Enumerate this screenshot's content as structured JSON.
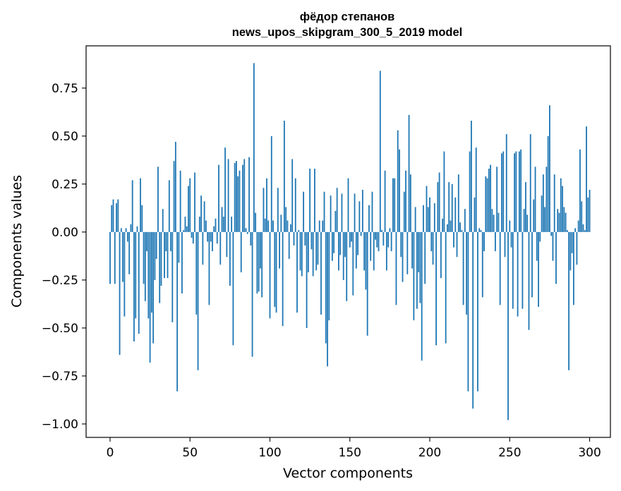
{
  "chart_data": {
    "type": "bar",
    "title_line1": "фёдор степанов",
    "title_line2": "news_upos_skipgram_300_5_2019 model",
    "xlabel": "Vector components",
    "ylabel": "Components values",
    "xlim": [
      -15,
      313
    ],
    "ylim": [
      -1.07,
      0.97
    ],
    "xticks": [
      0,
      50,
      100,
      150,
      200,
      250,
      300
    ],
    "xtick_labels": [
      "0",
      "50",
      "100",
      "150",
      "200",
      "250",
      "300"
    ],
    "yticks": [
      -1.0,
      -0.75,
      -0.5,
      -0.25,
      0.0,
      0.25,
      0.5,
      0.75
    ],
    "ytick_labels": [
      "−1.00",
      "−0.75",
      "−0.50",
      "−0.25",
      "0.00",
      "0.25",
      "0.50",
      "0.75"
    ],
    "bar_color": "#1f77b4",
    "values": [
      -0.27,
      0.14,
      0.17,
      -0.27,
      0.15,
      0.17,
      -0.64,
      0.02,
      -0.26,
      -0.44,
      0.02,
      -0.05,
      -0.22,
      0.04,
      0.27,
      -0.57,
      -0.45,
      0.03,
      -0.53,
      0.28,
      0.14,
      -0.27,
      -0.36,
      -0.1,
      -0.45,
      -0.68,
      -0.42,
      -0.58,
      -0.25,
      -0.14,
      0.34,
      -0.37,
      -0.28,
      0.12,
      -0.24,
      -0.1,
      -0.24,
      0.27,
      -0.1,
      -0.47,
      0.37,
      0.47,
      -0.83,
      -0.16,
      0.32,
      -0.32,
      0.01,
      0.08,
      0.03,
      0.24,
      0.28,
      -0.03,
      -0.06,
      0.31,
      -0.43,
      -0.72,
      0.08,
      0.19,
      -0.17,
      0.16,
      0.06,
      -0.05,
      -0.38,
      -0.05,
      -0.1,
      0.03,
      0.07,
      -0.06,
      0.35,
      -0.17,
      0.13,
      0.08,
      0.44,
      -0.13,
      0.38,
      -0.28,
      0.08,
      -0.59,
      0.36,
      0.37,
      0.29,
      0.32,
      -0.21,
      0.35,
      0.38,
      0.02,
      -0.01,
      0.39,
      -0.07,
      -0.65,
      0.88,
      0.1,
      -0.32,
      -0.31,
      -0.19,
      -0.34,
      0.23,
      0.07,
      0.28,
      0.06,
      -0.45,
      0.5,
      0.06,
      -0.39,
      -0.42,
      0.23,
      -0.19,
      0.09,
      -0.49,
      0.58,
      0.13,
      0.06,
      -0.14,
      0.04,
      0.38,
      -0.07,
      0.28,
      -0.42,
      0.01,
      -0.2,
      -0.23,
      0.21,
      -0.07,
      -0.5,
      -0.21,
      0.33,
      -0.09,
      -0.23,
      0.33,
      -0.2,
      -0.17,
      0.06,
      -0.43,
      0.06,
      0.21,
      -0.58,
      -0.7,
      -0.46,
      0.19,
      -0.15,
      -0.11,
      0.11,
      0.23,
      -0.2,
      -0.12,
      0.2,
      -0.25,
      -0.13,
      -0.36,
      0.28,
      -0.08,
      -0.05,
      -0.33,
      0.2,
      -0.19,
      -0.12,
      0.16,
      -0.02,
      0.22,
      -0.2,
      -0.3,
      -0.54,
      0.14,
      -0.15,
      0.21,
      -0.2,
      -0.04,
      -0.08,
      -0.1,
      0.84,
      0.01,
      -0.07,
      0.32,
      -0.2,
      -0.08,
      0.02,
      -0.1,
      0.28,
      0.28,
      -0.38,
      0.53,
      0.43,
      -0.13,
      -0.26,
      0.21,
      0.32,
      -0.22,
      0.61,
      0.3,
      -0.19,
      -0.46,
      0.13,
      -0.4,
      -0.21,
      -0.37,
      -0.67,
      0.14,
      -0.27,
      0.24,
      0.13,
      0.18,
      -0.1,
      -0.17,
      0.15,
      -0.59,
      0.26,
      0.31,
      -0.24,
      0.07,
      0.42,
      -0.58,
      0.04,
      0.26,
      0.06,
      0.25,
      -0.08,
      0.18,
      -0.13,
      0.3,
      0.05,
      0.01,
      -0.38,
      0.12,
      -0.43,
      -0.83,
      0.42,
      0.58,
      -0.92,
      0.18,
      0.44,
      -0.83,
      0.02,
      0.01,
      -0.34,
      -0.1,
      0.29,
      0.28,
      0.33,
      0.35,
      0.12,
      0.09,
      -0.1,
      0.34,
      0.1,
      -0.38,
      0.41,
      0.42,
      -0.13,
      0.51,
      -0.98,
      0.06,
      -0.08,
      -0.4,
      0.41,
      0.42,
      -0.44,
      0.42,
      0.43,
      -0.4,
      0.12,
      0.26,
      0.09,
      -0.51,
      0.51,
      -0.34,
      0.17,
      0.34,
      -0.15,
      -0.39,
      -0.05,
      0.19,
      0.3,
      0.13,
      0.34,
      0.5,
      0.66,
      -0.02,
      -0.15,
      0.3,
      -0.27,
      0.12,
      0.1,
      0.28,
      0.24,
      0.13,
      0.1,
      0.01,
      -0.72,
      -0.2,
      -0.11,
      -0.38,
      0.02,
      -0.17,
      0.06,
      0.43,
      0.16,
      0.04,
      0.01,
      0.55,
      0.18,
      0.22
    ]
  }
}
